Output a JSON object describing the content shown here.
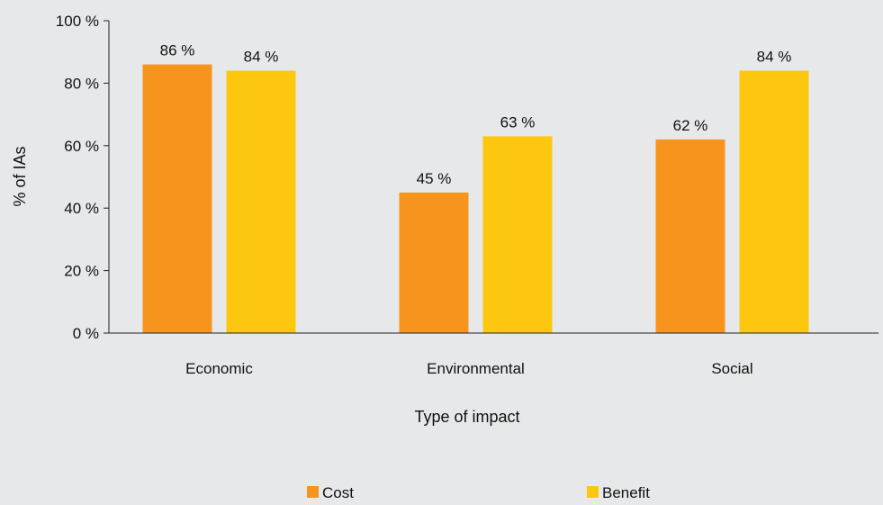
{
  "chart_data": {
    "type": "bar",
    "categories": [
      "Economic",
      "Environmental",
      "Social"
    ],
    "series": [
      {
        "name": "Cost",
        "values": [
          86,
          45,
          62
        ],
        "labels": [
          "86 %",
          "45 %",
          "62 %"
        ],
        "color": "#f7941d"
      },
      {
        "name": "Benefit",
        "values": [
          84,
          63,
          84
        ],
        "labels": [
          "84 %",
          "63 %",
          "84 %"
        ],
        "color": "#fdc70f"
      }
    ],
    "y_ticks": [
      0,
      20,
      40,
      60,
      80,
      100
    ],
    "y_tick_labels": [
      "0 %",
      "20 %",
      "40 %",
      "60 %",
      "80 %",
      "100 %"
    ],
    "ylim": [
      0,
      100
    ],
    "xlabel": "Type of impact",
    "ylabel": "% of IAs",
    "grid": false,
    "legend_position": "bottom"
  }
}
